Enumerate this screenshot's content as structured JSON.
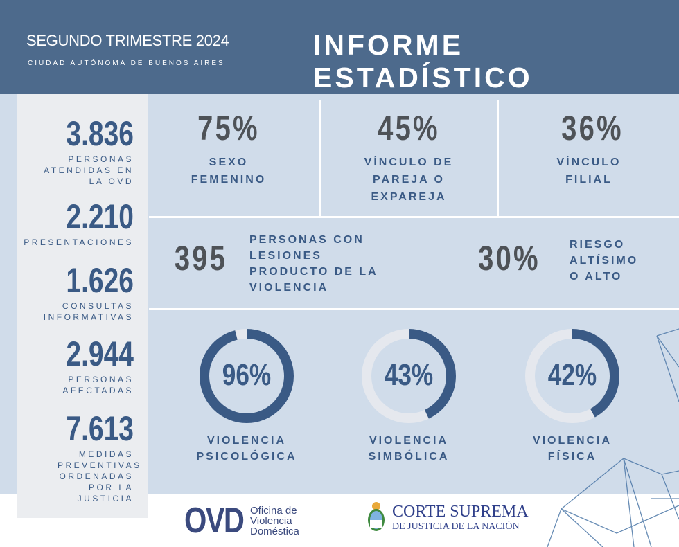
{
  "header": {
    "subtitle": "SEGUNDO TRIMESTRE 2024",
    "city": "CIUDAD AUTÓNOMA DE BUENOS AIRES",
    "title": "INFORME ESTADÍSTICO"
  },
  "left_stats": [
    {
      "value": "3.836",
      "label": "PERSONAS ATENDIDAS EN LA OVD"
    },
    {
      "value": "2.210",
      "label": "PRESENTACIONES"
    },
    {
      "value": "1.626",
      "label": "CONSULTAS INFORMATIVAS"
    },
    {
      "value": "2.944",
      "label": "PERSONAS AFECTADAS"
    },
    {
      "value": "7.613",
      "label": "MEDIDAS PREVENTIVAS ORDENADAS POR LA JUSTICIA"
    }
  ],
  "top_stats": [
    {
      "value": "75%",
      "label": "SEXO FEMENINO"
    },
    {
      "value": "45%",
      "label": "VÍNCULO DE PAREJA O EXPAREJA"
    },
    {
      "value": "36%",
      "label": "VÍNCULO FILIAL"
    }
  ],
  "mid_stats": [
    {
      "value": "395",
      "label": "PERSONAS CON LESIONES PRODUCTO DE LA VIOLENCIA"
    },
    {
      "value": "30%",
      "label": "RIESGO ALTÍSIMO O ALTO"
    }
  ],
  "donuts": [
    {
      "value": "96%",
      "percent": 96,
      "label": "VIOLENCIA PSICOLÓGICA"
    },
    {
      "value": "43%",
      "percent": 43,
      "label": "VIOLENCIA SIMBÓLICA"
    },
    {
      "value": "42%",
      "percent": 42,
      "label": "VIOLENCIA FÍSICA"
    }
  ],
  "colors": {
    "header": "#4d6a8c",
    "accent": "#3a5a85",
    "panel": "#d0dcea",
    "track": "#e5e8ee"
  },
  "footer": {
    "ovd_logo": "OVD",
    "ovd_name": "Oficina de Violencia Doméstica",
    "csj_line1": "CORTE SUPREMA",
    "csj_line2": "DE JUSTICIA DE LA NACIÓN"
  }
}
